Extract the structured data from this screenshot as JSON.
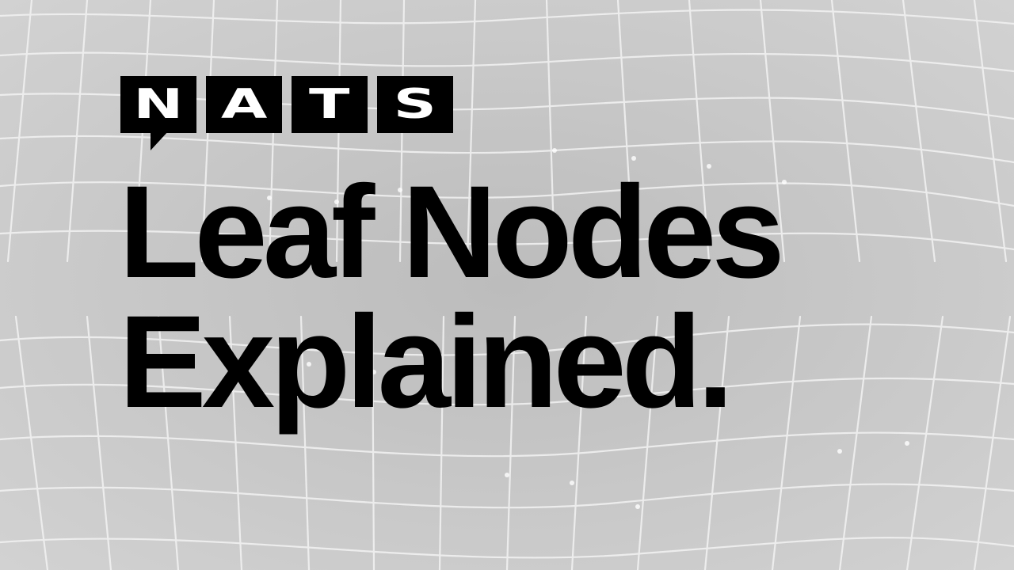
{
  "logo": {
    "letters": [
      "N",
      "A",
      "T",
      "S"
    ],
    "alt": "NATS"
  },
  "headline": {
    "line1": "Leaf Nodes",
    "line2": "Explained."
  },
  "colors": {
    "background": "#c9c9c9",
    "mesh": "#f4f4f4",
    "text": "#000000",
    "logo_fill": "#000000",
    "logo_text": "#ffffff"
  }
}
